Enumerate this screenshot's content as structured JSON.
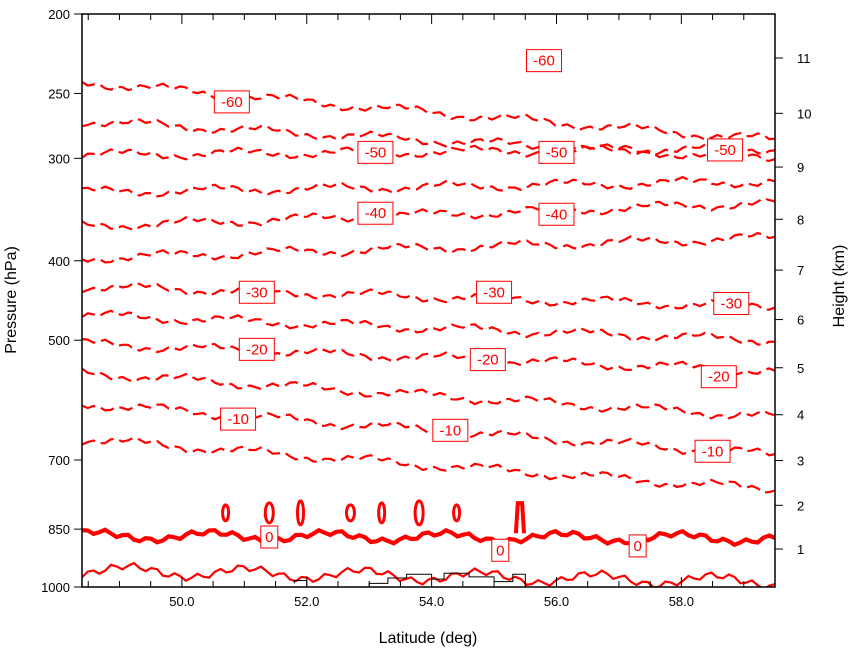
{
  "chart_data": {
    "type": "contour",
    "xlabel": "Latitude (deg)",
    "ylabel": "Pressure (hPa)",
    "ylabel_right": "Height (km)",
    "xlim": [
      48.4,
      59.5
    ],
    "ylim_pressure": [
      1000,
      200
    ],
    "y_scale": "log-pressure",
    "x_ticks": [
      "50.0",
      "52.0",
      "54.0",
      "56.0",
      "58.0"
    ],
    "x_tick_values": [
      50,
      52,
      54,
      56,
      58
    ],
    "y_ticks": [
      "200",
      "250",
      "300",
      "400",
      "500",
      "700",
      "850",
      "1000"
    ],
    "y_tick_values": [
      200,
      250,
      300,
      400,
      500,
      700,
      850,
      1000
    ],
    "y_right_ticks": [
      "1",
      "2",
      "3",
      "4",
      "5",
      "6",
      "7",
      "8",
      "9",
      "10",
      "11"
    ],
    "y_right_tick_values_km": [
      1,
      2,
      3,
      4,
      5,
      6,
      7,
      8,
      9,
      10,
      11
    ],
    "contour_color": "#ff0000",
    "terrain_color": "#000000",
    "grid": false,
    "contour_labels": [
      {
        "text": "-60",
        "lat": 55.8,
        "p": 228
      },
      {
        "text": "-60",
        "lat": 50.8,
        "p": 256
      },
      {
        "text": "-50",
        "lat": 53.1,
        "p": 295
      },
      {
        "text": "-50",
        "lat": 56.0,
        "p": 295
      },
      {
        "text": "-50",
        "lat": 58.7,
        "p": 293
      },
      {
        "text": "-40",
        "lat": 53.1,
        "p": 350
      },
      {
        "text": "-40",
        "lat": 56.0,
        "p": 351
      },
      {
        "text": "-30",
        "lat": 51.2,
        "p": 437
      },
      {
        "text": "-30",
        "lat": 55.0,
        "p": 437
      },
      {
        "text": "-30",
        "lat": 58.8,
        "p": 451
      },
      {
        "text": "-20",
        "lat": 51.2,
        "p": 513
      },
      {
        "text": "-20",
        "lat": 54.9,
        "p": 528
      },
      {
        "text": "-20",
        "lat": 58.6,
        "p": 554
      },
      {
        "text": "-10",
        "lat": 50.9,
        "p": 624
      },
      {
        "text": "-10",
        "lat": 54.3,
        "p": 644
      },
      {
        "text": "-10",
        "lat": 58.5,
        "p": 683
      },
      {
        "text": "0",
        "lat": 51.4,
        "p": 869
      },
      {
        "text": "0",
        "lat": 55.1,
        "p": 902
      },
      {
        "text": "0",
        "lat": 57.3,
        "p": 891
      }
    ],
    "contour_levels_dashed": [
      -60,
      -55,
      -50,
      -45,
      -40,
      -35,
      -30,
      -25,
      -20,
      -15,
      -10,
      -5
    ],
    "contour_levels_solid": [
      0,
      5
    ]
  }
}
